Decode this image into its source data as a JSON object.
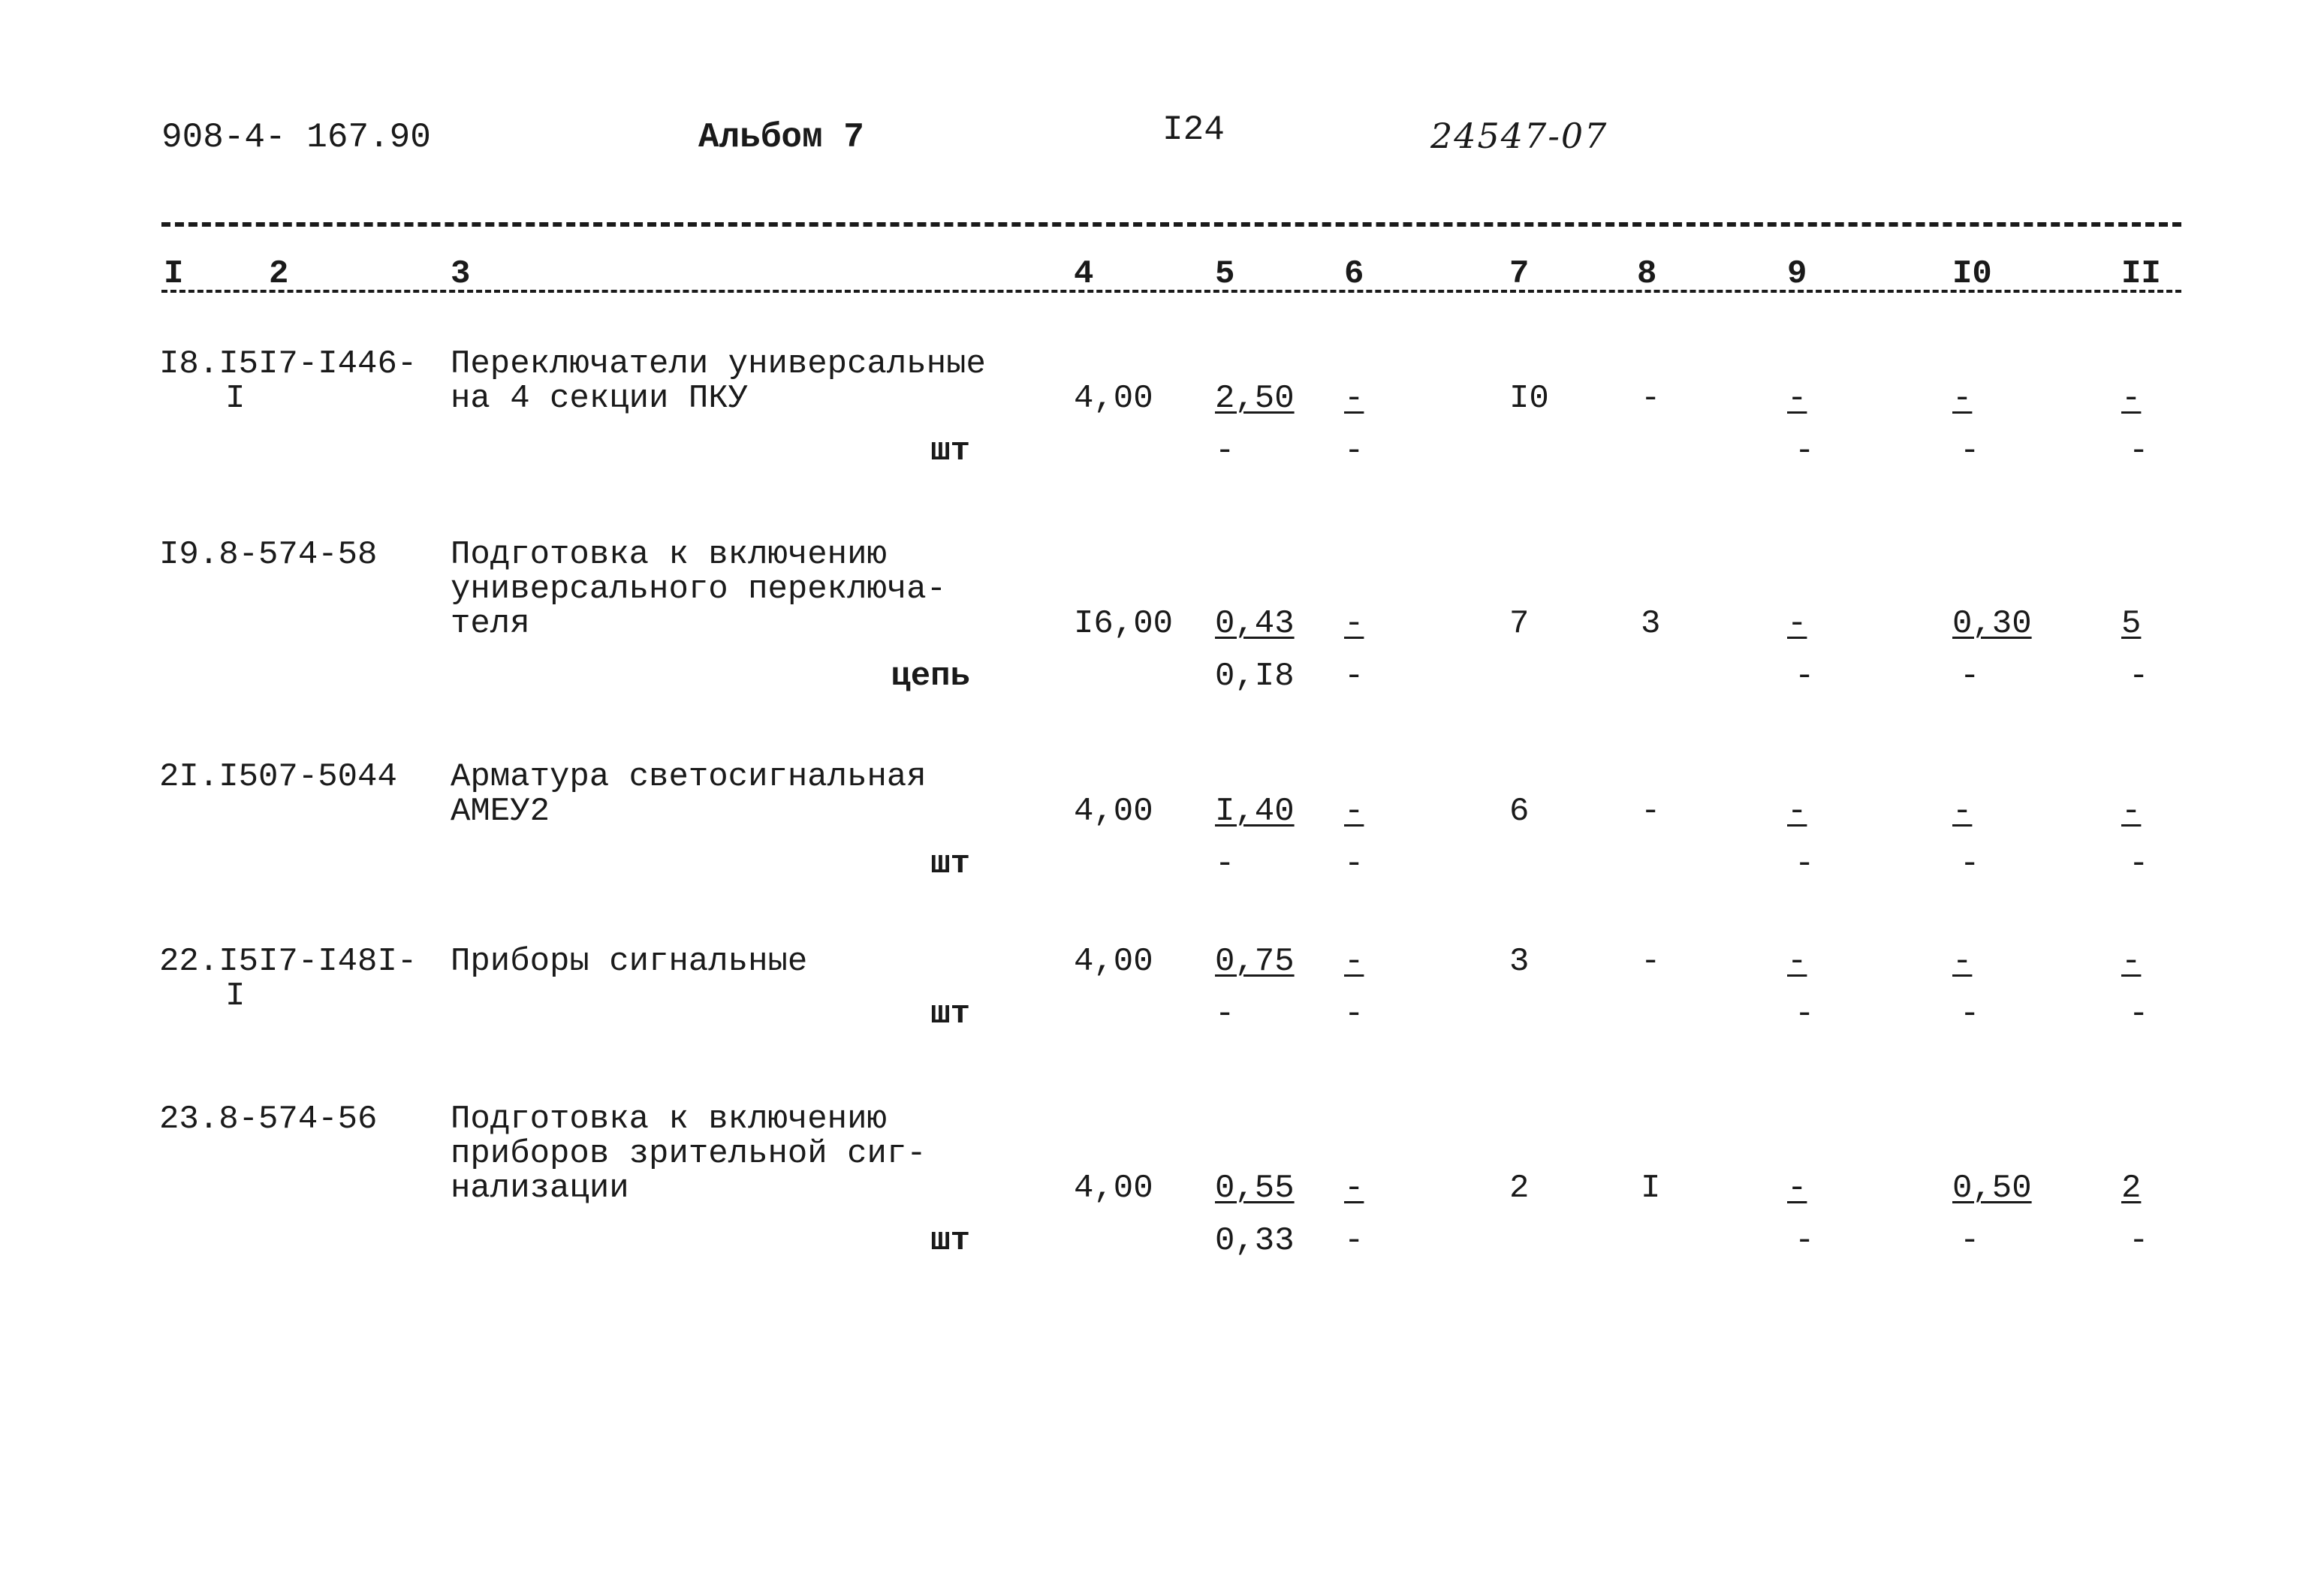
{
  "header": {
    "series_code": "908-4- 167.90",
    "album": "Альбом 7",
    "page_number": "I24",
    "doc_number": "24547-07"
  },
  "column_numbers": [
    "I",
    "2",
    "3",
    "4",
    "5",
    "6",
    "7",
    "8",
    "9",
    "I0",
    "II"
  ],
  "rows": [
    {
      "code": "I8.I5I7-I446-",
      "code_cont": "I",
      "name": [
        "Переключатели универсальные",
        "на 4 секции ПКУ"
      ],
      "unit": "шт",
      "c4": "4,00",
      "c5": [
        "2,50",
        "-"
      ],
      "c6": [
        "-",
        "-"
      ],
      "c7": "I0",
      "c8": "-",
      "c9": [
        "-",
        "-"
      ],
      "c10": [
        "-",
        "-"
      ],
      "c11": [
        "-",
        "-"
      ]
    },
    {
      "code": "I9.8-574-58",
      "code_cont": "",
      "name": [
        "Подготовка к включению",
        "универсального переключа-",
        "теля"
      ],
      "unit": "цепь",
      "c4": "I6,00",
      "c5": [
        "0,43",
        "0,I8"
      ],
      "c6": [
        "-",
        "-"
      ],
      "c7": "7",
      "c8": "3",
      "c9": [
        "-",
        "-"
      ],
      "c10": [
        "0,30",
        "-"
      ],
      "c11": [
        "5",
        "-"
      ]
    },
    {
      "code": "2I.I507-5044",
      "code_cont": "",
      "name": [
        "Арматура светосигнальная",
        "АМЕУ2"
      ],
      "unit": "шт",
      "c4": "4,00",
      "c5": [
        "I,40",
        "-"
      ],
      "c6": [
        "-",
        "-"
      ],
      "c7": "6",
      "c8": "-",
      "c9": [
        "-",
        "-"
      ],
      "c10": [
        "-",
        "-"
      ],
      "c11": [
        "-",
        "-"
      ]
    },
    {
      "code": "22.I5I7-I48I-",
      "code_cont": "I",
      "name": [
        "Приборы сигнальные"
      ],
      "unit": "шт",
      "c4": "4,00",
      "c5": [
        "0,75",
        "-"
      ],
      "c6": [
        "-",
        "-"
      ],
      "c7": "3",
      "c8": "-",
      "c9": [
        "-",
        "-"
      ],
      "c10": [
        "-",
        "-"
      ],
      "c11": [
        "-",
        "-"
      ]
    },
    {
      "code": "23.8-574-56",
      "code_cont": "",
      "name": [
        "Подготовка к включению",
        "приборов зрительной сиг-",
        "нализации"
      ],
      "unit": "шт",
      "c4": "4,00",
      "c5": [
        "0,55",
        "0,33"
      ],
      "c6": [
        "-",
        "-"
      ],
      "c7": "2",
      "c8": "I",
      "c9": [
        "-",
        "-"
      ],
      "c10": [
        "0,50",
        "-"
      ],
      "c11": [
        "2",
        "-"
      ]
    }
  ]
}
